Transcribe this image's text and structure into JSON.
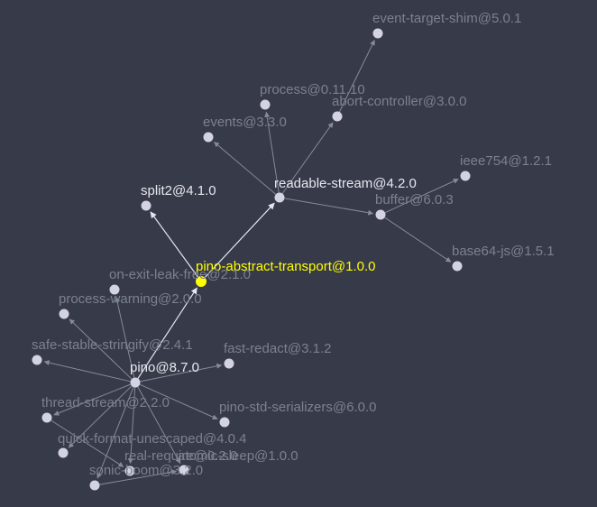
{
  "colors": {
    "background": "#363a49",
    "node": "#d3d3e3",
    "node_focus": "#ffff00",
    "label_active": "#e8e8f0",
    "label_dim": "#7c8090",
    "label_focus": "#ffff00",
    "edge_active": "#e6e6f0",
    "edge_dim": "#878a98"
  },
  "graph": {
    "focus": "pino-abstract-transport@1.0.0",
    "nodes": [
      {
        "id": "pino-abstract-transport",
        "label": "pino-abstract-transport@1.0.0",
        "state": "focus"
      },
      {
        "id": "split2",
        "label": "split2@4.1.0",
        "state": "active"
      },
      {
        "id": "readable-stream",
        "label": "readable-stream@4.2.0",
        "state": "active"
      },
      {
        "id": "pino",
        "label": "pino@8.7.0",
        "state": "active"
      },
      {
        "id": "event-target-shim",
        "label": "event-target-shim@5.0.1",
        "state": "dim"
      },
      {
        "id": "process",
        "label": "process@0.11.10",
        "state": "dim"
      },
      {
        "id": "abort-controller",
        "label": "abort-controller@3.0.0",
        "state": "dim"
      },
      {
        "id": "events",
        "label": "events@3.3.0",
        "state": "dim"
      },
      {
        "id": "ieee754",
        "label": "ieee754@1.2.1",
        "state": "dim"
      },
      {
        "id": "buffer",
        "label": "buffer@6.0.3",
        "state": "dim"
      },
      {
        "id": "base64-js",
        "label": "base64-js@1.5.1",
        "state": "dim"
      },
      {
        "id": "on-exit-leak-free",
        "label": "on-exit-leak-free@2.1.0",
        "state": "dim"
      },
      {
        "id": "process-warning",
        "label": "process-warning@2.0.0",
        "state": "dim"
      },
      {
        "id": "safe-stable-stringify",
        "label": "safe-stable-stringify@2.4.1",
        "state": "dim"
      },
      {
        "id": "fast-redact",
        "label": "fast-redact@3.1.2",
        "state": "dim"
      },
      {
        "id": "thread-stream",
        "label": "thread-stream@2.2.0",
        "state": "dim"
      },
      {
        "id": "pino-std-serializers",
        "label": "pino-std-serializers@6.0.0",
        "state": "dim"
      },
      {
        "id": "quick-format-unescaped",
        "label": "quick-format-unescaped@4.0.4",
        "state": "dim"
      },
      {
        "id": "real-require",
        "label": "real-require@0.2.0",
        "state": "dim"
      },
      {
        "id": "atomic-sleep",
        "label": "atomic-sleep@1.0.0",
        "state": "dim"
      },
      {
        "id": "sonic-boom",
        "label": "sonic-boom@3.2.0",
        "state": "dim"
      }
    ],
    "edges": [
      {
        "from": "pino",
        "to": "pino-abstract-transport",
        "state": "active"
      },
      {
        "from": "pino-abstract-transport",
        "to": "split2",
        "state": "active"
      },
      {
        "from": "pino-abstract-transport",
        "to": "readable-stream",
        "state": "active"
      },
      {
        "from": "readable-stream",
        "to": "abort-controller",
        "state": "dim"
      },
      {
        "from": "abort-controller",
        "to": "event-target-shim",
        "state": "dim"
      },
      {
        "from": "readable-stream",
        "to": "process",
        "state": "dim"
      },
      {
        "from": "readable-stream",
        "to": "events",
        "state": "dim"
      },
      {
        "from": "readable-stream",
        "to": "buffer",
        "state": "dim"
      },
      {
        "from": "buffer",
        "to": "ieee754",
        "state": "dim"
      },
      {
        "from": "buffer",
        "to": "base64-js",
        "state": "dim"
      },
      {
        "from": "pino",
        "to": "on-exit-leak-free",
        "state": "dim"
      },
      {
        "from": "pino",
        "to": "process-warning",
        "state": "dim"
      },
      {
        "from": "pino",
        "to": "safe-stable-stringify",
        "state": "dim"
      },
      {
        "from": "pino",
        "to": "fast-redact",
        "state": "dim"
      },
      {
        "from": "pino",
        "to": "thread-stream",
        "state": "dim"
      },
      {
        "from": "pino",
        "to": "pino-std-serializers",
        "state": "dim"
      },
      {
        "from": "pino",
        "to": "quick-format-unescaped",
        "state": "dim"
      },
      {
        "from": "pino",
        "to": "real-require",
        "state": "dim"
      },
      {
        "from": "pino",
        "to": "atomic-sleep",
        "state": "dim"
      },
      {
        "from": "pino",
        "to": "sonic-boom",
        "state": "dim"
      },
      {
        "from": "thread-stream",
        "to": "real-require",
        "state": "dim"
      },
      {
        "from": "sonic-boom",
        "to": "atomic-sleep",
        "state": "dim"
      }
    ]
  }
}
